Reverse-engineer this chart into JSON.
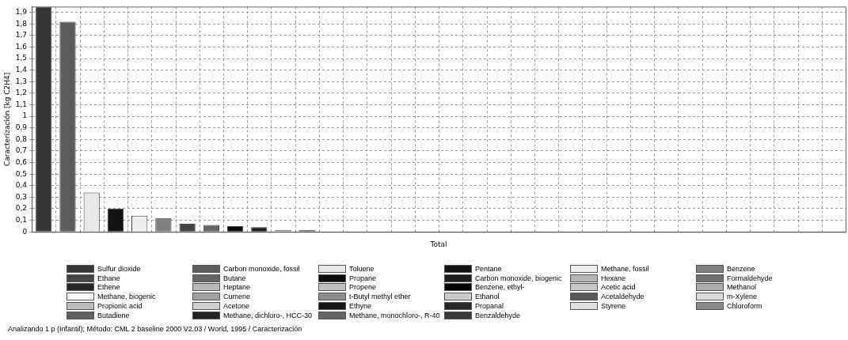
{
  "chart_data": {
    "type": "bar",
    "ylabel": "Caracterización [kg C2H4]",
    "categories": [
      "Total"
    ],
    "series": [
      {
        "name": "Sulfur dioxide",
        "color": "#363636",
        "values": [
          1.95
        ]
      },
      {
        "name": "Carbon monoxide, fossil",
        "color": "#5c5c5c",
        "values": [
          1.82
        ]
      },
      {
        "name": "Toluene",
        "color": "#e8e8e8",
        "values": [
          0.34
        ]
      },
      {
        "name": "Pentane",
        "color": "#141414",
        "values": [
          0.2
        ]
      },
      {
        "name": "Methane, fossil",
        "color": "#eeeeee",
        "values": [
          0.14
        ]
      },
      {
        "name": "Benzene",
        "color": "#808080",
        "values": [
          0.12
        ]
      },
      {
        "name": "Ethane",
        "color": "#444444",
        "values": [
          0.07
        ]
      },
      {
        "name": "Butane",
        "color": "#646464",
        "values": [
          0.06
        ]
      },
      {
        "name": "Propane",
        "color": "#0c0c0c",
        "values": [
          0.05
        ]
      },
      {
        "name": "Carbon monoxide, biogenic",
        "color": "#1e1e1e",
        "values": [
          0.04
        ]
      },
      {
        "name": "Hexane",
        "color": "#b4b4b4",
        "values": [
          0.015
        ]
      },
      {
        "name": "Formaldehyde",
        "color": "#707070",
        "values": [
          0.015
        ]
      },
      {
        "name": "Ethene",
        "color": "#262626",
        "values": [
          0
        ]
      },
      {
        "name": "Heptane",
        "color": "#b8b8b8",
        "values": [
          0
        ]
      },
      {
        "name": "Propene",
        "color": "#c0c0c0",
        "values": [
          0
        ]
      },
      {
        "name": "Benzene, ethyl-",
        "color": "#050505",
        "values": [
          0
        ]
      },
      {
        "name": "Acetic acid",
        "color": "#c8c8c8",
        "values": [
          0
        ]
      },
      {
        "name": "Methanol",
        "color": "#acacac",
        "values": [
          0
        ]
      },
      {
        "name": "Methane, biogenic",
        "color": "#fafafa",
        "values": [
          0
        ]
      },
      {
        "name": "Cumene",
        "color": "#a0a0a0",
        "values": [
          0
        ]
      },
      {
        "name": "t-Butyl methyl ether",
        "color": "#8c8c8c",
        "values": [
          0
        ]
      },
      {
        "name": "Ethanol",
        "color": "#cccccc",
        "values": [
          0
        ]
      },
      {
        "name": "Acetaldehyde",
        "color": "#5a5a5a",
        "values": [
          0
        ]
      },
      {
        "name": "m-Xylene",
        "color": "#dcdcdc",
        "values": [
          0
        ]
      },
      {
        "name": "Propionic acid",
        "color": "#bcbcbc",
        "values": [
          0
        ]
      },
      {
        "name": "Acetone",
        "color": "#d0d0d0",
        "values": [
          0
        ]
      },
      {
        "name": "Ethyne",
        "color": "#161616",
        "values": [
          0
        ]
      },
      {
        "name": "Propanal",
        "color": "#282828",
        "values": [
          0
        ]
      },
      {
        "name": "Styrene",
        "color": "#e0e0e0",
        "values": [
          0
        ]
      },
      {
        "name": "Chloroform",
        "color": "#8a8a8a",
        "values": [
          0
        ]
      },
      {
        "name": "Butadiene",
        "color": "#606060",
        "values": [
          0
        ]
      },
      {
        "name": "Methane, dichloro-, HCC-30",
        "color": "#222222",
        "values": [
          0
        ]
      },
      {
        "name": "Methane, monochloro-, R-40",
        "color": "#666666",
        "values": [
          0
        ]
      },
      {
        "name": "Benzaldehyde",
        "color": "#3a3a3a",
        "values": [
          0
        ]
      }
    ],
    "ylim": [
      0,
      1.95
    ],
    "yticks": [
      0,
      {
        "value": 0.1,
        "label": "0,1"
      },
      {
        "value": 0.2,
        "label": "0,2"
      },
      {
        "value": 0.3,
        "label": "0,3"
      },
      {
        "value": 0.4,
        "label": "0,4"
      },
      {
        "value": 0.5,
        "label": "0,5"
      },
      {
        "value": 0.6,
        "label": "0,6"
      },
      {
        "value": 0.7,
        "label": "0,7"
      },
      {
        "value": 0.8,
        "label": "0,8"
      },
      {
        "value": 0.9,
        "label": "0,9"
      },
      1,
      {
        "value": 1.1,
        "label": "1,1"
      },
      {
        "value": 1.2,
        "label": "1,2"
      },
      {
        "value": 1.3,
        "label": "1,3"
      },
      {
        "value": 1.4,
        "label": "1,4"
      },
      {
        "value": 1.5,
        "label": "1,5"
      },
      {
        "value": 1.6,
        "label": "1,6"
      },
      {
        "value": 1.7,
        "label": "1,7"
      },
      {
        "value": 1.8,
        "label": "1,8"
      },
      {
        "value": 1.9,
        "label": "1,9"
      }
    ],
    "grid": true,
    "legend": "bottom",
    "annotations": [
      "Analizando 1 p (Infantil);  Método: CML 2 baseline 2000 V2.03 /  World, 1995 / Caracterización"
    ]
  }
}
